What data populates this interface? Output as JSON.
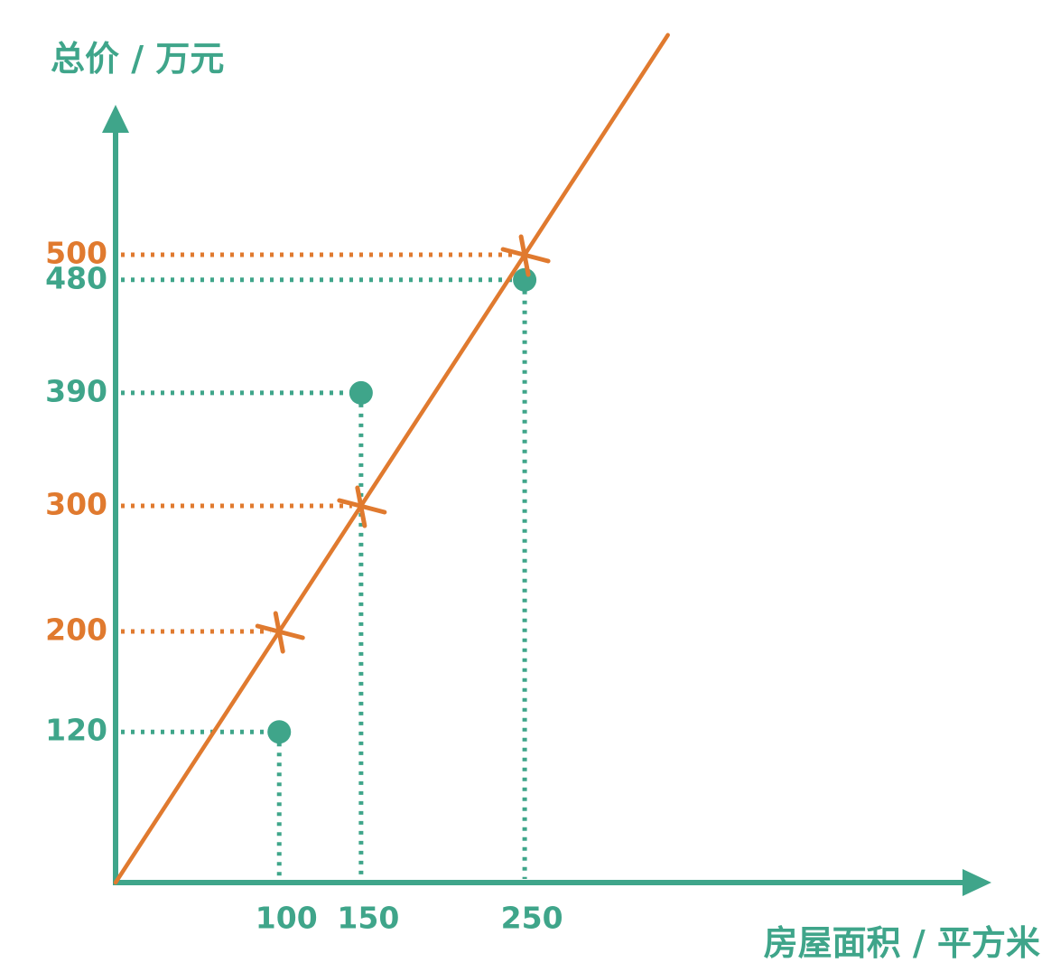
{
  "chart_data": {
    "type": "scatter",
    "ylabel": "总价 / 万元",
    "xlabel": "房屋面积 / 平方米",
    "colors": {
      "actual": "#3fa58a",
      "predicted": "#e07a2f",
      "axis": "#3fa58a"
    },
    "xticks": [
      "100",
      "150",
      "250"
    ],
    "yticks_actual": [
      "120",
      "390",
      "480"
    ],
    "yticks_predicted": [
      "200",
      "300",
      "500"
    ],
    "actual_points": [
      {
        "x": 100,
        "y": 120
      },
      {
        "x": 150,
        "y": 390
      },
      {
        "x": 250,
        "y": 480
      }
    ],
    "predicted_points": [
      {
        "x": 100,
        "y": 200
      },
      {
        "x": 150,
        "y": 300
      },
      {
        "x": 250,
        "y": 500
      }
    ],
    "fit_line": {
      "slope": 2,
      "intercept": 0
    }
  }
}
